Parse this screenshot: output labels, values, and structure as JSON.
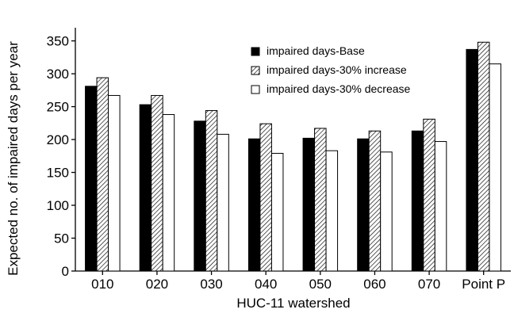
{
  "chart_data": {
    "type": "bar",
    "title": "",
    "xlabel": "HUC-11 watershed",
    "ylabel": "Expected no. of impaired days per year",
    "categories": [
      "010",
      "020",
      "030",
      "040",
      "050",
      "060",
      "070",
      "Point P"
    ],
    "ylim": [
      0,
      370
    ],
    "yticks": [
      0,
      50,
      100,
      150,
      200,
      250,
      300,
      350
    ],
    "grid": false,
    "legend_position": "top-right",
    "series": [
      {
        "name": "impaired days-Base",
        "style": "solid-black",
        "values": [
          281,
          253,
          228,
          201,
          202,
          201,
          213,
          337
        ]
      },
      {
        "name": "impaired days-30% increase",
        "style": "diagonal-hatch",
        "values": [
          294,
          267,
          244,
          224,
          217,
          213,
          231,
          348
        ]
      },
      {
        "name": "impaired days-30% decrease",
        "style": "white",
        "values": [
          267,
          238,
          208,
          179,
          183,
          181,
          197,
          315
        ]
      }
    ],
    "colors": {
      "ink": "#000000",
      "paper": "#ffffff"
    }
  }
}
